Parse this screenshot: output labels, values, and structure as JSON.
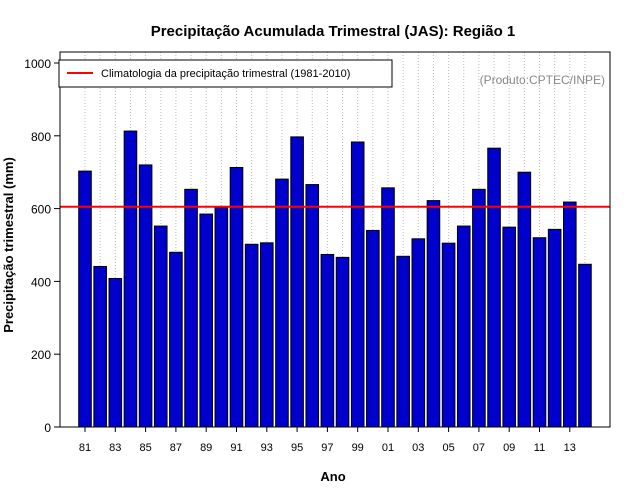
{
  "chart_data": {
    "type": "bar",
    "title": "Precipitação Acumulada Trimestral (JAS): Região 1",
    "xlabel": "Ano",
    "ylabel": "Precipitação trimestral (mm)",
    "ylim": [
      0,
      1000
    ],
    "yticks": [
      0,
      200,
      400,
      600,
      800,
      1000
    ],
    "grid": "vertical dotted",
    "categories": [
      "81",
      "82",
      "83",
      "84",
      "85",
      "86",
      "87",
      "88",
      "89",
      "90",
      "91",
      "92",
      "93",
      "94",
      "95",
      "96",
      "97",
      "98",
      "99",
      "00",
      "01",
      "02",
      "03",
      "04",
      "05",
      "06",
      "07",
      "08",
      "09",
      "10",
      "11",
      "12",
      "13",
      "14"
    ],
    "xtick_labels": [
      "81",
      "83",
      "85",
      "87",
      "89",
      "91",
      "93",
      "95",
      "97",
      "99",
      "01",
      "03",
      "05",
      "07",
      "09",
      "11",
      "13"
    ],
    "values": [
      703,
      441,
      408,
      813,
      720,
      552,
      480,
      653,
      585,
      603,
      713,
      502,
      506,
      681,
      797,
      666,
      474,
      466,
      783,
      540,
      657,
      469,
      517,
      622,
      505,
      552,
      653,
      766,
      549,
      700,
      520,
      543,
      618,
      447
    ],
    "bar_color": "#0000cc",
    "reference_line": {
      "value": 605,
      "color": "#ff0000",
      "label": "Climatologia da precipitação trimestral (1981-2010)"
    },
    "legend_position": "top-left",
    "credit": "(Produto:CPTEC/INPE)"
  }
}
